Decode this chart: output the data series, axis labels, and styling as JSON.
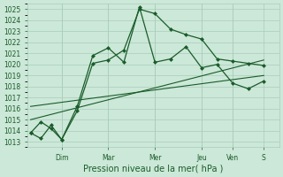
{
  "bg_color": "#cce8d8",
  "grid_color": "#aaccbb",
  "line_color": "#1a5c2a",
  "title": "Pression niveau de la mer( hPa )",
  "ylim": [
    1012.5,
    1025.5
  ],
  "yticks": [
    1013,
    1014,
    1015,
    1016,
    1017,
    1018,
    1019,
    1020,
    1021,
    1022,
    1023,
    1024,
    1025
  ],
  "x_day_labels": [
    "Dim",
    "Mar",
    "Mer",
    "Jeu",
    "Ven",
    "S"
  ],
  "day_tick_positions": [
    1.0,
    2.5,
    4.0,
    5.5,
    6.5,
    7.5
  ],
  "series1_x": [
    0.0,
    0.33,
    0.66,
    1.0,
    1.5,
    2.0,
    2.5,
    3.0,
    3.5,
    4.0,
    4.5,
    5.0,
    5.5,
    6.0,
    6.5,
    7.0,
    7.5
  ],
  "series1_y": [
    1013.8,
    1013.3,
    1014.5,
    1013.2,
    1015.8,
    1020.1,
    1020.4,
    1021.3,
    1025.0,
    1024.6,
    1023.2,
    1022.7,
    1022.3,
    1020.5,
    1020.3,
    1020.1,
    1019.9
  ],
  "series2_x": [
    0.0,
    0.33,
    0.66,
    1.0,
    1.5,
    2.0,
    2.5,
    3.0,
    3.5,
    4.0,
    4.5,
    5.0,
    5.5,
    6.0,
    6.5,
    7.0,
    7.5
  ],
  "series2_y": [
    1013.8,
    1014.8,
    1014.2,
    1013.2,
    1016.2,
    1020.8,
    1021.5,
    1020.2,
    1025.2,
    1020.2,
    1020.5,
    1021.6,
    1019.7,
    1020.0,
    1018.3,
    1017.8,
    1018.5
  ],
  "line1_x": [
    0.0,
    7.5
  ],
  "line1_y": [
    1015.0,
    1020.4
  ],
  "line2_x": [
    0.0,
    7.5
  ],
  "line2_y": [
    1016.2,
    1019.0
  ],
  "xlim": [
    -0.1,
    8.0
  ],
  "ylabel_fontsize": 5.5,
  "xlabel_fontsize": 7,
  "tick_fontsize": 5.5,
  "marker_size": 2.5,
  "line_width": 0.9
}
